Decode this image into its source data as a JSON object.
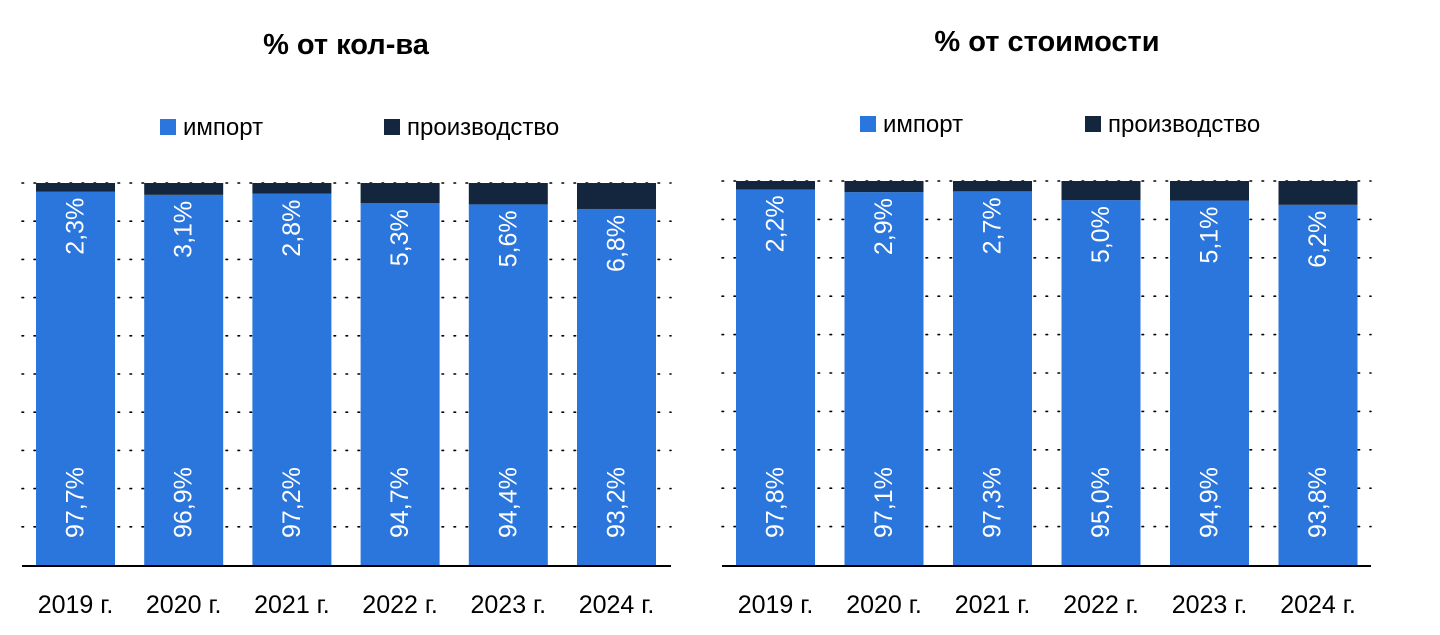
{
  "colors": {
    "import": "#2A76DC",
    "production": "#13263D",
    "label": "#ffffff",
    "text": "#000000"
  },
  "chart_data": [
    {
      "type": "bar",
      "stacked": true,
      "normalized": true,
      "title": "% от кол-ва",
      "categories": [
        "2019 г.",
        "2020 г.",
        "2021 г.",
        "2022 г.",
        "2023 г.",
        "2024 г."
      ],
      "series": [
        {
          "name": "импорт",
          "values": [
            97.7,
            96.9,
            97.2,
            94.7,
            94.4,
            93.2
          ],
          "labels": [
            "97,7%",
            "96,9%",
            "97,2%",
            "94,7%",
            "94,4%",
            "93,2%"
          ]
        },
        {
          "name": "производство",
          "values": [
            2.3,
            3.1,
            2.8,
            5.3,
            5.6,
            6.8
          ],
          "labels": [
            "2,3%",
            "3,1%",
            "2,8%",
            "5,3%",
            "5,6%",
            "6,8%"
          ]
        }
      ],
      "ylim": [
        0,
        100
      ],
      "grid": true,
      "legend": "top"
    },
    {
      "type": "bar",
      "stacked": true,
      "normalized": true,
      "title": "% от стоимости",
      "categories": [
        "2019 г.",
        "2020 г.",
        "2021 г.",
        "2022 г.",
        "2023 г.",
        "2024 г."
      ],
      "series": [
        {
          "name": "импорт",
          "values": [
            97.8,
            97.1,
            97.3,
            95.0,
            94.9,
            93.8
          ],
          "labels": [
            "97,8%",
            "97,1%",
            "97,3%",
            "95,0%",
            "94,9%",
            "93,8%"
          ]
        },
        {
          "name": "производство",
          "values": [
            2.2,
            2.9,
            2.7,
            5.0,
            5.1,
            6.2
          ],
          "labels": [
            "2,2%",
            "2,9%",
            "2,7%",
            "5,0%",
            "5,1%",
            "6,2%"
          ]
        }
      ],
      "ylim": [
        0,
        100
      ],
      "grid": true,
      "legend": "top"
    }
  ]
}
